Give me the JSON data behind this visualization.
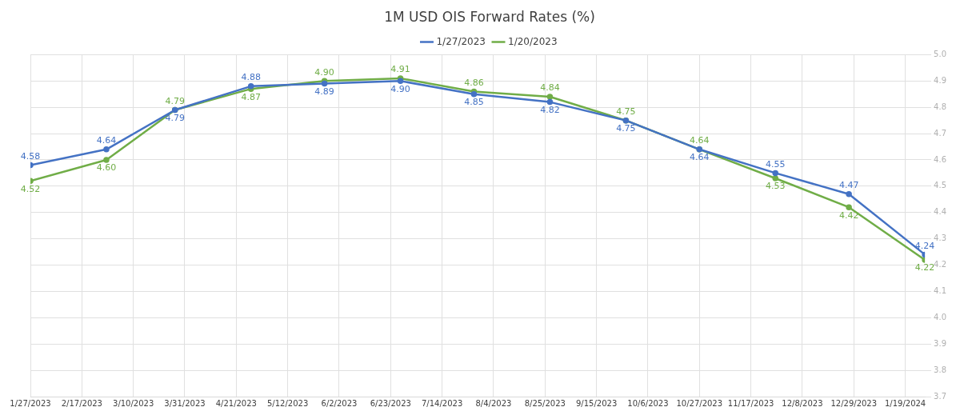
{
  "chart_data": {
    "type": "line",
    "title": "1M USD OIS Forward Rates (%)",
    "x": [
      "2023-01-27",
      "2023-02-27",
      "2023-03-27",
      "2023-04-27",
      "2023-05-27",
      "2023-06-27",
      "2023-07-27",
      "2023-08-27",
      "2023-09-27",
      "2023-10-27",
      "2023-11-27",
      "2023-12-27",
      "2024-01-27"
    ],
    "series": [
      {
        "name": "1/27/2023",
        "color": "#4472c4",
        "values": [
          4.58,
          4.64,
          4.79,
          4.88,
          4.89,
          4.9,
          4.85,
          4.82,
          4.75,
          4.64,
          4.55,
          4.47,
          4.24
        ],
        "value_labels": [
          "4.58",
          "4.64",
          "4.79",
          "4.88",
          "4.89",
          "4.90",
          "4.85",
          "4.82",
          "4.75",
          "4.64",
          "4.55",
          "4.47",
          "4.24"
        ]
      },
      {
        "name": "1/20/2023",
        "color": "#70ad47",
        "values": [
          4.52,
          4.6,
          4.79,
          4.87,
          4.9,
          4.91,
          4.86,
          4.84,
          4.75,
          4.64,
          4.53,
          4.42,
          4.22
        ],
        "value_labels": [
          "4.52",
          "4.60",
          "4.79",
          "4.87",
          "4.90",
          "4.91",
          "4.86",
          "4.84",
          "4.75",
          "4.64",
          "4.53",
          "4.42",
          "4.22"
        ]
      }
    ],
    "xlim": [
      "2023-01-27",
      "2024-01-27"
    ],
    "xticks": [
      {
        "value": "2023-01-27",
        "label": "1/27/2023"
      },
      {
        "value": "2023-02-17",
        "label": "2/17/2023"
      },
      {
        "value": "2023-03-10",
        "label": "3/10/2023"
      },
      {
        "value": "2023-03-31",
        "label": "3/31/2023"
      },
      {
        "value": "2023-04-21",
        "label": "4/21/2023"
      },
      {
        "value": "2023-05-12",
        "label": "5/12/2023"
      },
      {
        "value": "2023-06-02",
        "label": "6/2/2023"
      },
      {
        "value": "2023-06-23",
        "label": "6/23/2023"
      },
      {
        "value": "2023-07-14",
        "label": "7/14/2023"
      },
      {
        "value": "2023-08-04",
        "label": "8/4/2023"
      },
      {
        "value": "2023-08-25",
        "label": "8/25/2023"
      },
      {
        "value": "2023-09-15",
        "label": "9/15/2023"
      },
      {
        "value": "2023-10-06",
        "label": "10/6/2023"
      },
      {
        "value": "2023-10-27",
        "label": "10/27/2023"
      },
      {
        "value": "2023-11-17",
        "label": "11/17/2023"
      },
      {
        "value": "2023-12-08",
        "label": "12/8/2023"
      },
      {
        "value": "2023-12-29",
        "label": "12/29/2023"
      },
      {
        "value": "2024-01-19",
        "label": "1/19/2024"
      }
    ],
    "ylim": [
      3.7,
      5.0
    ],
    "yticks": [
      {
        "value": 3.7,
        "label": "3.7"
      },
      {
        "value": 3.8,
        "label": "3.8"
      },
      {
        "value": 3.9,
        "label": "3.9"
      },
      {
        "value": 4.0,
        "label": "4.0"
      },
      {
        "value": 4.1,
        "label": "4.1"
      },
      {
        "value": 4.2,
        "label": "4.2"
      },
      {
        "value": 4.3,
        "label": "4.3"
      },
      {
        "value": 4.4,
        "label": "4.4"
      },
      {
        "value": 4.5,
        "label": "4.5"
      },
      {
        "value": 4.6,
        "label": "4.6"
      },
      {
        "value": 4.7,
        "label": "4.7"
      },
      {
        "value": 4.8,
        "label": "4.8"
      },
      {
        "value": 4.9,
        "label": "4.9"
      },
      {
        "value": 5.0,
        "label": "5.0"
      }
    ],
    "grid": true,
    "legend": "top",
    "marker": "circle",
    "line_style": "solid"
  }
}
